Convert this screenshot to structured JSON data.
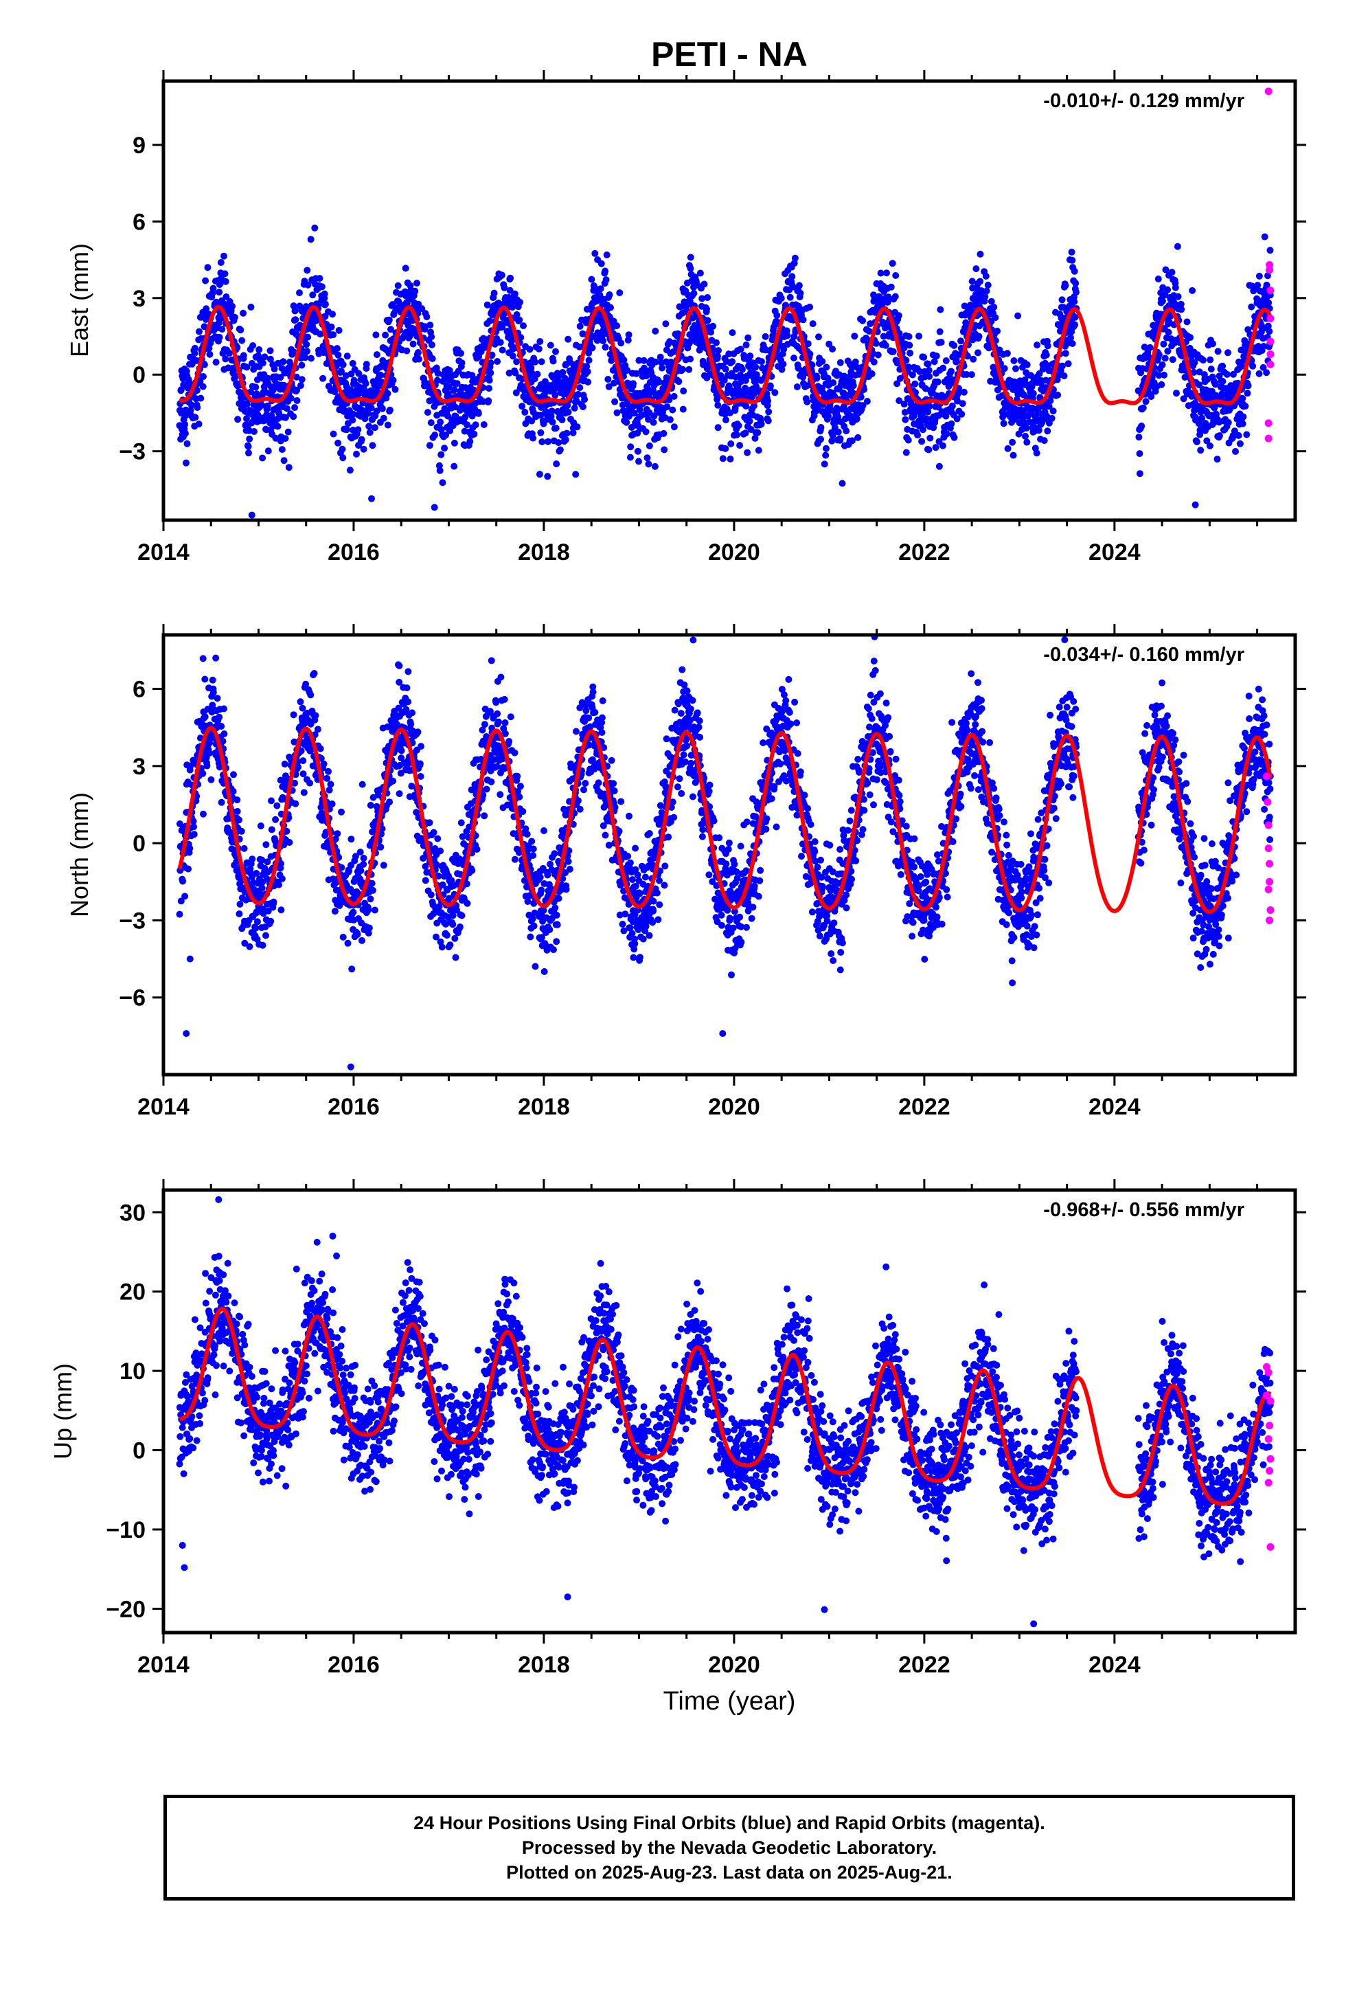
{
  "title": "PETI - NA",
  "colors": {
    "final": "#0000ff",
    "rapid": "#ff00ff",
    "model": "#ff0000",
    "frame": "#000000"
  },
  "xaxis": {
    "label": "Time (year)",
    "range": [
      2014.0,
      2025.9
    ],
    "ticks": [
      2014,
      2016,
      2018,
      2020,
      2022,
      2024
    ]
  },
  "footer": {
    "line1": "24 Hour Positions Using Final Orbits (blue) and Rapid Orbits (magenta).",
    "line2": "Processed by the Nevada Geodetic Laboratory.",
    "line3": "Plotted on 2025-Aug-23. Last data on 2025-Aug-21."
  },
  "chart_data": [
    {
      "type": "scatter",
      "title": "PETI - NA",
      "ylabel": "East (mm)",
      "rate": "-0.010+/- 0.129 mm/yr",
      "ylim": [
        -5.7,
        11.5
      ],
      "yticks": [
        -3,
        0,
        3,
        6,
        9
      ],
      "series": [],
      "data_span": [
        2014.17,
        2025.64
      ],
      "gaps": [
        [
          2023.6,
          2024.25
        ]
      ],
      "model": {
        "offset": 0.2,
        "annual": 1.8,
        "semiannual": 0.6,
        "peak": 2014.58,
        "trend": -0.01
      },
      "noise_sd": 0.95,
      "outliers_final": [
        [
          2014.93,
          -5.5
        ],
        [
          2016.85,
          -5.2
        ],
        [
          2024.85,
          -5.1
        ],
        [
          2023.55,
          4.8
        ],
        [
          2025.58,
          5.4
        ],
        [
          2015.55,
          5.3
        ]
      ],
      "rapid": [
        [
          2025.62,
          11.1
        ],
        [
          2025.63,
          4.3
        ],
        [
          2025.63,
          4.1
        ],
        [
          2025.64,
          3.3
        ],
        [
          2025.64,
          2.2
        ],
        [
          2025.64,
          1.3
        ],
        [
          2025.64,
          0.8
        ],
        [
          2025.64,
          0.4
        ],
        [
          2025.62,
          -1.9
        ],
        [
          2025.62,
          -2.5
        ]
      ]
    },
    {
      "type": "scatter",
      "ylabel": "North (mm)",
      "rate": "-0.034+/- 0.160 mm/yr",
      "ylim": [
        -9.0,
        8.1
      ],
      "yticks": [
        -6,
        -3,
        0,
        3,
        6
      ],
      "series": [],
      "data_span": [
        2014.17,
        2025.64
      ],
      "gaps": [
        [
          2023.6,
          2024.25
        ]
      ],
      "model": {
        "offset": 0.6,
        "annual": 3.4,
        "semiannual": 0.3,
        "peak": 2014.5,
        "trend": -0.034
      },
      "noise_sd": 1.0,
      "outliers_final": [
        [
          2014.24,
          -7.4
        ],
        [
          2015.97,
          -8.7
        ],
        [
          2019.88,
          -7.4
        ],
        [
          2019.57,
          7.9
        ],
        [
          2014.28,
          -4.5
        ],
        [
          2014.55,
          7.2
        ],
        [
          2016.48,
          6.9
        ],
        [
          2017.45,
          7.1
        ]
      ],
      "rapid": [
        [
          2025.6,
          2.6
        ],
        [
          2025.61,
          1.6
        ],
        [
          2025.62,
          0.7
        ],
        [
          2025.62,
          -0.2
        ],
        [
          2025.63,
          -0.8
        ],
        [
          2025.63,
          -1.5
        ],
        [
          2025.62,
          -1.8
        ],
        [
          2025.64,
          -2.6
        ],
        [
          2025.63,
          -3.0
        ]
      ]
    },
    {
      "type": "scatter",
      "ylabel": "Up (mm)",
      "rate": "-0.968+/- 0.556 mm/yr",
      "ylim": [
        -23.0,
        32.8
      ],
      "yticks": [
        -20,
        -10,
        0,
        10,
        20,
        30
      ],
      "series": [],
      "data_span": [
        2014.17,
        2025.64
      ],
      "gaps": [
        [
          2023.6,
          2024.25
        ]
      ],
      "model": {
        "offset": 4.0,
        "annual": 7.2,
        "semiannual": 1.5,
        "peak": 2014.62,
        "trend": -0.968
      },
      "noise_sd": 3.4,
      "outliers_final": [
        [
          2014.58,
          31.6
        ],
        [
          2015.78,
          27.0
        ],
        [
          2015.82,
          24.5
        ],
        [
          2014.2,
          -12.0
        ],
        [
          2014.22,
          -14.8
        ],
        [
          2023.15,
          -21.9
        ],
        [
          2020.95,
          -20.1
        ],
        [
          2023.52,
          15.0
        ],
        [
          2018.25,
          -18.5
        ]
      ],
      "rapid": [
        [
          2025.6,
          10.5
        ],
        [
          2025.62,
          9.8
        ],
        [
          2025.6,
          6.9
        ],
        [
          2025.64,
          6.2
        ],
        [
          2025.63,
          3.1
        ],
        [
          2025.62,
          1.4
        ],
        [
          2025.64,
          -1.1
        ],
        [
          2025.63,
          -2.6
        ],
        [
          2025.62,
          -4.1
        ],
        [
          2025.64,
          -12.2
        ]
      ]
    }
  ]
}
